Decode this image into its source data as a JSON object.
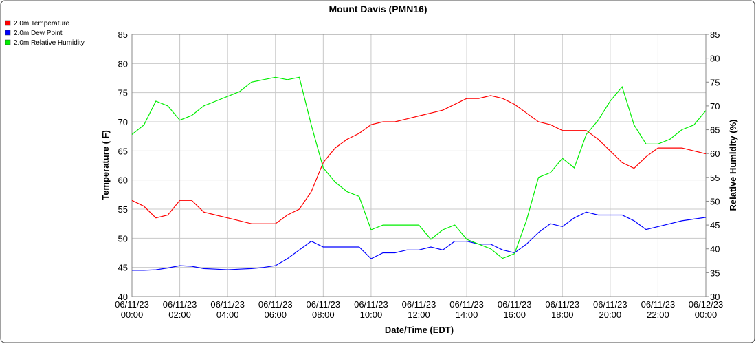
{
  "chart_data": {
    "type": "line",
    "title": "Mount Davis (PMN16)",
    "xlabel": "Date/Time (EDT)",
    "ylabel": "Temperature ( F)",
    "y2label": "Relative Humidity (%)",
    "x": [
      0,
      0.5,
      1,
      1.5,
      2,
      2.5,
      3,
      3.5,
      4,
      4.5,
      5,
      5.5,
      6,
      6.5,
      7,
      7.5,
      8,
      8.5,
      9,
      9.5,
      10,
      10.5,
      11,
      11.5,
      12,
      12.5,
      13,
      13.5,
      14,
      14.5,
      15,
      15.5,
      16,
      16.5,
      17,
      17.5,
      18,
      18.5,
      19,
      19.5,
      20,
      20.5,
      21,
      21.5,
      22,
      22.5,
      23,
      23.5,
      24
    ],
    "series": [
      {
        "name": "2.0m Temperature",
        "color": "#ff0000",
        "axis": "y",
        "values": [
          56.5,
          55.5,
          53.5,
          54,
          56.5,
          56.5,
          54.5,
          54,
          53.5,
          53,
          52.5,
          52.5,
          52.5,
          54,
          55,
          58,
          63,
          65.5,
          67,
          68,
          69.5,
          70,
          70,
          70.5,
          71,
          71.5,
          72,
          73,
          74,
          74,
          74.5,
          74,
          73,
          71.5,
          70,
          69.5,
          68.5,
          68.5,
          68.5,
          67,
          65,
          63,
          62,
          64,
          65.5,
          65.5,
          65.5,
          65,
          64.5
        ]
      },
      {
        "name": "2.0m Dew Point",
        "color": "#0000ff",
        "axis": "y",
        "values": [
          44.5,
          44.5,
          44.6,
          44.9,
          45.3,
          45.2,
          44.8,
          44.7,
          44.6,
          44.7,
          44.8,
          45,
          45.3,
          46.5,
          48,
          49.5,
          48.5,
          48.5,
          48.5,
          48.5,
          46.5,
          47.5,
          47.5,
          48,
          48,
          48.5,
          48,
          49.5,
          49.5,
          49,
          49,
          48,
          47.5,
          49,
          51,
          52.5,
          52,
          53.5,
          54.5,
          54,
          54,
          54,
          53,
          51.5,
          52,
          52.5,
          53,
          53.3,
          53.6
        ]
      },
      {
        "name": "2.0m Relative Humidity",
        "color": "#00ee00",
        "axis": "y2",
        "values": [
          64,
          66,
          71,
          70,
          67,
          68,
          70,
          71,
          72,
          73,
          75,
          75.5,
          76,
          75.5,
          76,
          66,
          57,
          54,
          52,
          51,
          44,
          45,
          45,
          45,
          45,
          42,
          44,
          45,
          42,
          41,
          40,
          38,
          39,
          46,
          55,
          56,
          59,
          57,
          64,
          67,
          71,
          74,
          66,
          62,
          62,
          63,
          65,
          66,
          69
        ]
      }
    ],
    "xlim": [
      0,
      24
    ],
    "xticks": [
      {
        "value": 0,
        "label": "06/11/23 00:00"
      },
      {
        "value": 2,
        "label": "06/11/23 02:00"
      },
      {
        "value": 4,
        "label": "06/11/23 04:00"
      },
      {
        "value": 6,
        "label": "06/11/23 06:00"
      },
      {
        "value": 8,
        "label": "06/11/23 08:00"
      },
      {
        "value": 10,
        "label": "06/11/23 10:00"
      },
      {
        "value": 12,
        "label": "06/11/23 12:00"
      },
      {
        "value": 14,
        "label": "06/11/23 14:00"
      },
      {
        "value": 16,
        "label": "06/11/23 16:00"
      },
      {
        "value": 18,
        "label": "06/11/23 18:00"
      },
      {
        "value": 20,
        "label": "06/11/23 20:00"
      },
      {
        "value": 22,
        "label": "06/11/23 22:00"
      },
      {
        "value": 24,
        "label": "06/12/23 00:00"
      }
    ],
    "ylim": [
      40,
      85
    ],
    "yticks": [
      40,
      45,
      50,
      55,
      60,
      65,
      70,
      75,
      80,
      85
    ],
    "y2lim": [
      30,
      85
    ],
    "y2ticks": [
      30,
      35,
      40,
      45,
      50,
      55,
      60,
      65,
      70,
      75,
      80,
      85
    ],
    "grid": true,
    "legend": "top-left"
  }
}
